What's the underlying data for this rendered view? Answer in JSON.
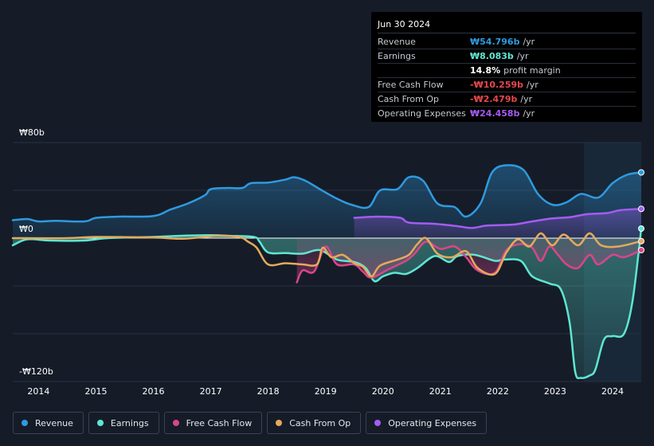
{
  "chart_data": {
    "type": "line",
    "title": "",
    "currency": "₩",
    "ylim": [
      -120,
      80
    ],
    "y_axis_labels": [
      "₩80b",
      "₩0",
      "-₩120b"
    ],
    "x_tick_labels": [
      "2014",
      "2015",
      "2016",
      "2017",
      "2018",
      "2019",
      "2020",
      "2021",
      "2022",
      "2023",
      "2024"
    ],
    "xlim": [
      2013.55,
      2024.5
    ],
    "highlight_start": 2023.5,
    "series": [
      {
        "name": "Revenue",
        "color": "#2f9ae0",
        "fill": true,
        "points": [
          [
            2013.55,
            15
          ],
          [
            2013.8,
            16
          ],
          [
            2014.0,
            14
          ],
          [
            2014.3,
            14.5
          ],
          [
            2014.8,
            14
          ],
          [
            2015.0,
            17
          ],
          [
            2015.4,
            18
          ],
          [
            2016.0,
            18.5
          ],
          [
            2016.3,
            24
          ],
          [
            2016.6,
            29
          ],
          [
            2016.9,
            36
          ],
          [
            2017.0,
            41
          ],
          [
            2017.3,
            42
          ],
          [
            2017.55,
            42
          ],
          [
            2017.7,
            46
          ],
          [
            2018.0,
            46.5
          ],
          [
            2018.3,
            49
          ],
          [
            2018.45,
            51
          ],
          [
            2018.65,
            48
          ],
          [
            2018.9,
            41
          ],
          [
            2019.2,
            33
          ],
          [
            2019.45,
            28
          ],
          [
            2019.75,
            26
          ],
          [
            2019.95,
            40
          ],
          [
            2020.25,
            41
          ],
          [
            2020.45,
            51
          ],
          [
            2020.7,
            48
          ],
          [
            2020.95,
            29
          ],
          [
            2021.25,
            26
          ],
          [
            2021.45,
            18
          ],
          [
            2021.7,
            29
          ],
          [
            2021.9,
            55
          ],
          [
            2022.15,
            61
          ],
          [
            2022.45,
            57
          ],
          [
            2022.7,
            37
          ],
          [
            2022.95,
            28
          ],
          [
            2023.2,
            30
          ],
          [
            2023.45,
            37
          ],
          [
            2023.75,
            34
          ],
          [
            2024.0,
            46
          ],
          [
            2024.25,
            53
          ],
          [
            2024.5,
            55
          ]
        ]
      },
      {
        "name": "Operating Expenses",
        "color": "#a45cf0",
        "fill": true,
        "points": [
          [
            2019.5,
            17
          ],
          [
            2019.9,
            18
          ],
          [
            2020.3,
            17
          ],
          [
            2020.45,
            13
          ],
          [
            2020.9,
            12
          ],
          [
            2021.3,
            10
          ],
          [
            2021.55,
            8.5
          ],
          [
            2021.8,
            10.5
          ],
          [
            2022.1,
            11
          ],
          [
            2022.3,
            11.5
          ],
          [
            2022.6,
            14
          ],
          [
            2022.95,
            16.5
          ],
          [
            2023.25,
            17.5
          ],
          [
            2023.55,
            20
          ],
          [
            2023.9,
            21
          ],
          [
            2024.15,
            23.5
          ],
          [
            2024.5,
            24.5
          ]
        ]
      },
      {
        "name": "Earnings",
        "color": "#5fe6d2",
        "fill": true,
        "points": [
          [
            2013.55,
            -6
          ],
          [
            2013.8,
            -1
          ],
          [
            2014.2,
            -2
          ],
          [
            2014.8,
            -2
          ],
          [
            2015.2,
            0
          ],
          [
            2016.0,
            1
          ],
          [
            2016.5,
            2
          ],
          [
            2017.0,
            2.5
          ],
          [
            2017.3,
            2
          ],
          [
            2017.75,
            1
          ],
          [
            2017.85,
            -3
          ],
          [
            2018.0,
            -12
          ],
          [
            2018.3,
            -12.5
          ],
          [
            2018.6,
            -13
          ],
          [
            2018.9,
            -10
          ],
          [
            2019.2,
            -18
          ],
          [
            2019.5,
            -20
          ],
          [
            2019.7,
            -25
          ],
          [
            2019.85,
            -36
          ],
          [
            2020.0,
            -32
          ],
          [
            2020.2,
            -29
          ],
          [
            2020.4,
            -30
          ],
          [
            2020.6,
            -25
          ],
          [
            2020.9,
            -15
          ],
          [
            2021.15,
            -20
          ],
          [
            2021.3,
            -15
          ],
          [
            2021.6,
            -14
          ],
          [
            2021.95,
            -19
          ],
          [
            2022.1,
            -18
          ],
          [
            2022.4,
            -19
          ],
          [
            2022.6,
            -32
          ],
          [
            2022.9,
            -38
          ],
          [
            2023.1,
            -43
          ],
          [
            2023.25,
            -70
          ],
          [
            2023.35,
            -112
          ],
          [
            2023.45,
            -117
          ],
          [
            2023.6,
            -115
          ],
          [
            2023.7,
            -110
          ],
          [
            2023.85,
            -85
          ],
          [
            2024.0,
            -82
          ],
          [
            2024.2,
            -80
          ],
          [
            2024.35,
            -52
          ],
          [
            2024.5,
            8
          ]
        ]
      },
      {
        "name": "Free Cash Flow",
        "color": "#d9468a",
        "fill": true,
        "points": [
          [
            2018.5,
            -37
          ],
          [
            2018.6,
            -27
          ],
          [
            2018.8,
            -28
          ],
          [
            2019.0,
            -7
          ],
          [
            2019.2,
            -22
          ],
          [
            2019.5,
            -22
          ],
          [
            2019.65,
            -28
          ],
          [
            2019.8,
            -33
          ],
          [
            2020.1,
            -26
          ],
          [
            2020.4,
            -19
          ],
          [
            2020.55,
            -13
          ],
          [
            2020.75,
            -3
          ],
          [
            2021.0,
            -9
          ],
          [
            2021.25,
            -7
          ],
          [
            2021.45,
            -16
          ],
          [
            2021.65,
            -27
          ],
          [
            2021.95,
            -29
          ],
          [
            2022.15,
            -10
          ],
          [
            2022.4,
            -5
          ],
          [
            2022.6,
            -8
          ],
          [
            2022.75,
            -19
          ],
          [
            2022.9,
            -7
          ],
          [
            2023.05,
            -14
          ],
          [
            2023.2,
            -22
          ],
          [
            2023.4,
            -25
          ],
          [
            2023.6,
            -14
          ],
          [
            2023.75,
            -22
          ],
          [
            2024.0,
            -14
          ],
          [
            2024.2,
            -16
          ],
          [
            2024.5,
            -10
          ]
        ]
      },
      {
        "name": "Cash From Op",
        "color": "#e6a95c",
        "fill": false,
        "points": [
          [
            2013.55,
            0
          ],
          [
            2014.5,
            0
          ],
          [
            2015.0,
            1
          ],
          [
            2016.0,
            0.5
          ],
          [
            2016.5,
            -0.5
          ],
          [
            2016.9,
            1
          ],
          [
            2017.1,
            2
          ],
          [
            2017.5,
            1
          ],
          [
            2017.65,
            -3
          ],
          [
            2017.8,
            -8
          ],
          [
            2018.0,
            -22
          ],
          [
            2018.3,
            -21
          ],
          [
            2018.6,
            -22
          ],
          [
            2018.85,
            -22
          ],
          [
            2018.95,
            -8
          ],
          [
            2019.1,
            -16
          ],
          [
            2019.3,
            -14
          ],
          [
            2019.5,
            -21
          ],
          [
            2019.65,
            -24
          ],
          [
            2019.8,
            -32
          ],
          [
            2019.95,
            -23
          ],
          [
            2020.25,
            -18
          ],
          [
            2020.45,
            -14
          ],
          [
            2020.6,
            -5
          ],
          [
            2020.75,
            0
          ],
          [
            2020.95,
            -13
          ],
          [
            2021.2,
            -16
          ],
          [
            2021.45,
            -11
          ],
          [
            2021.65,
            -25
          ],
          [
            2021.95,
            -30
          ],
          [
            2022.15,
            -12
          ],
          [
            2022.35,
            -1
          ],
          [
            2022.55,
            -7
          ],
          [
            2022.75,
            4
          ],
          [
            2022.95,
            -6
          ],
          [
            2023.15,
            3
          ],
          [
            2023.4,
            -6
          ],
          [
            2023.6,
            4
          ],
          [
            2023.8,
            -6
          ],
          [
            2024.1,
            -7
          ],
          [
            2024.5,
            -2.5
          ]
        ]
      }
    ]
  },
  "tooltip": {
    "date": "Jun 30 2024",
    "rows": [
      {
        "label": "Revenue",
        "value": "₩54.796b",
        "unit": "/yr",
        "color": "#2f9ae0"
      },
      {
        "label": "Earnings",
        "value": "₩8.083b",
        "unit": "/yr",
        "color": "#5fe6d2"
      },
      {
        "label": "",
        "value": "14.8%",
        "unit": "profit margin",
        "color": "#ffffff"
      },
      {
        "label": "Free Cash Flow",
        "value": "-₩10.259b",
        "unit": "/yr",
        "color": "#e5484d"
      },
      {
        "label": "Cash From Op",
        "value": "-₩2.479b",
        "unit": "/yr",
        "color": "#e5484d"
      },
      {
        "label": "Operating Expenses",
        "value": "₩24.458b",
        "unit": "/yr",
        "color": "#a45cf0"
      }
    ]
  },
  "legend": [
    {
      "label": "Revenue",
      "color": "#2f9ae0"
    },
    {
      "label": "Earnings",
      "color": "#5fe6d2"
    },
    {
      "label": "Free Cash Flow",
      "color": "#d9468a"
    },
    {
      "label": "Cash From Op",
      "color": "#e6a95c"
    },
    {
      "label": "Operating Expenses",
      "color": "#a45cf0"
    }
  ]
}
